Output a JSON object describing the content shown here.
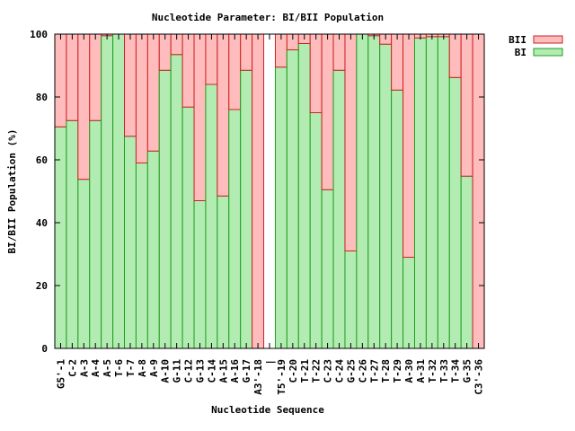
{
  "chart_data": {
    "type": "bar",
    "stacked": true,
    "title": "Nucleotide Parameter: BI/BII Population",
    "xlabel": "Nucleotide Sequence",
    "ylabel": "BI/BII Population (%)",
    "ylim": [
      0,
      100
    ],
    "yticks": [
      0,
      20,
      40,
      60,
      80,
      100
    ],
    "legend_position": "top-right",
    "colors": {
      "BI_fill": "#b3ecb3",
      "BI_edge": "#1f9e1f",
      "BII_fill": "#ffbcbc",
      "BII_edge": "#cc2222"
    },
    "categories": [
      "G5'-1",
      "C-2",
      "A-3",
      "A-4",
      "A-5",
      "T-6",
      "T-7",
      "A-8",
      "A-9",
      "A-10",
      "G-11",
      "C-12",
      "G-13",
      "C-14",
      "A-15",
      "A-16",
      "G-17",
      "A3'-18",
      "|",
      "T5'-19",
      "C-20",
      "T-21",
      "T-22",
      "C-23",
      "C-24",
      "G-25",
      "C-26",
      "T-27",
      "T-28",
      "T-29",
      "A-30",
      "A-31",
      "T-32",
      "T-33",
      "T-34",
      "G-35",
      "C3'-36"
    ],
    "series": [
      {
        "name": "BII",
        "values": [
          29.5,
          27.5,
          46.2,
          27.5,
          0.5,
          0,
          32.5,
          41,
          37.2,
          11.5,
          6.5,
          23.2,
          53,
          16,
          51.5,
          24,
          11.5,
          100,
          null,
          10.5,
          5,
          3,
          25,
          49.5,
          11.5,
          69,
          0,
          0.5,
          3.2,
          17.8,
          71,
          1.2,
          0.8,
          0.8,
          13.8,
          45.2,
          100
        ]
      },
      {
        "name": "BI",
        "values": [
          70.5,
          72.5,
          53.8,
          72.5,
          99.5,
          100,
          67.5,
          59,
          62.8,
          88.5,
          93.5,
          76.8,
          47,
          84,
          48.5,
          76,
          88.5,
          0,
          null,
          89.5,
          95,
          97,
          75,
          50.5,
          88.5,
          31,
          100,
          99.5,
          96.8,
          82.2,
          29,
          98.8,
          99.2,
          99.2,
          86.2,
          54.8,
          0
        ]
      }
    ]
  }
}
